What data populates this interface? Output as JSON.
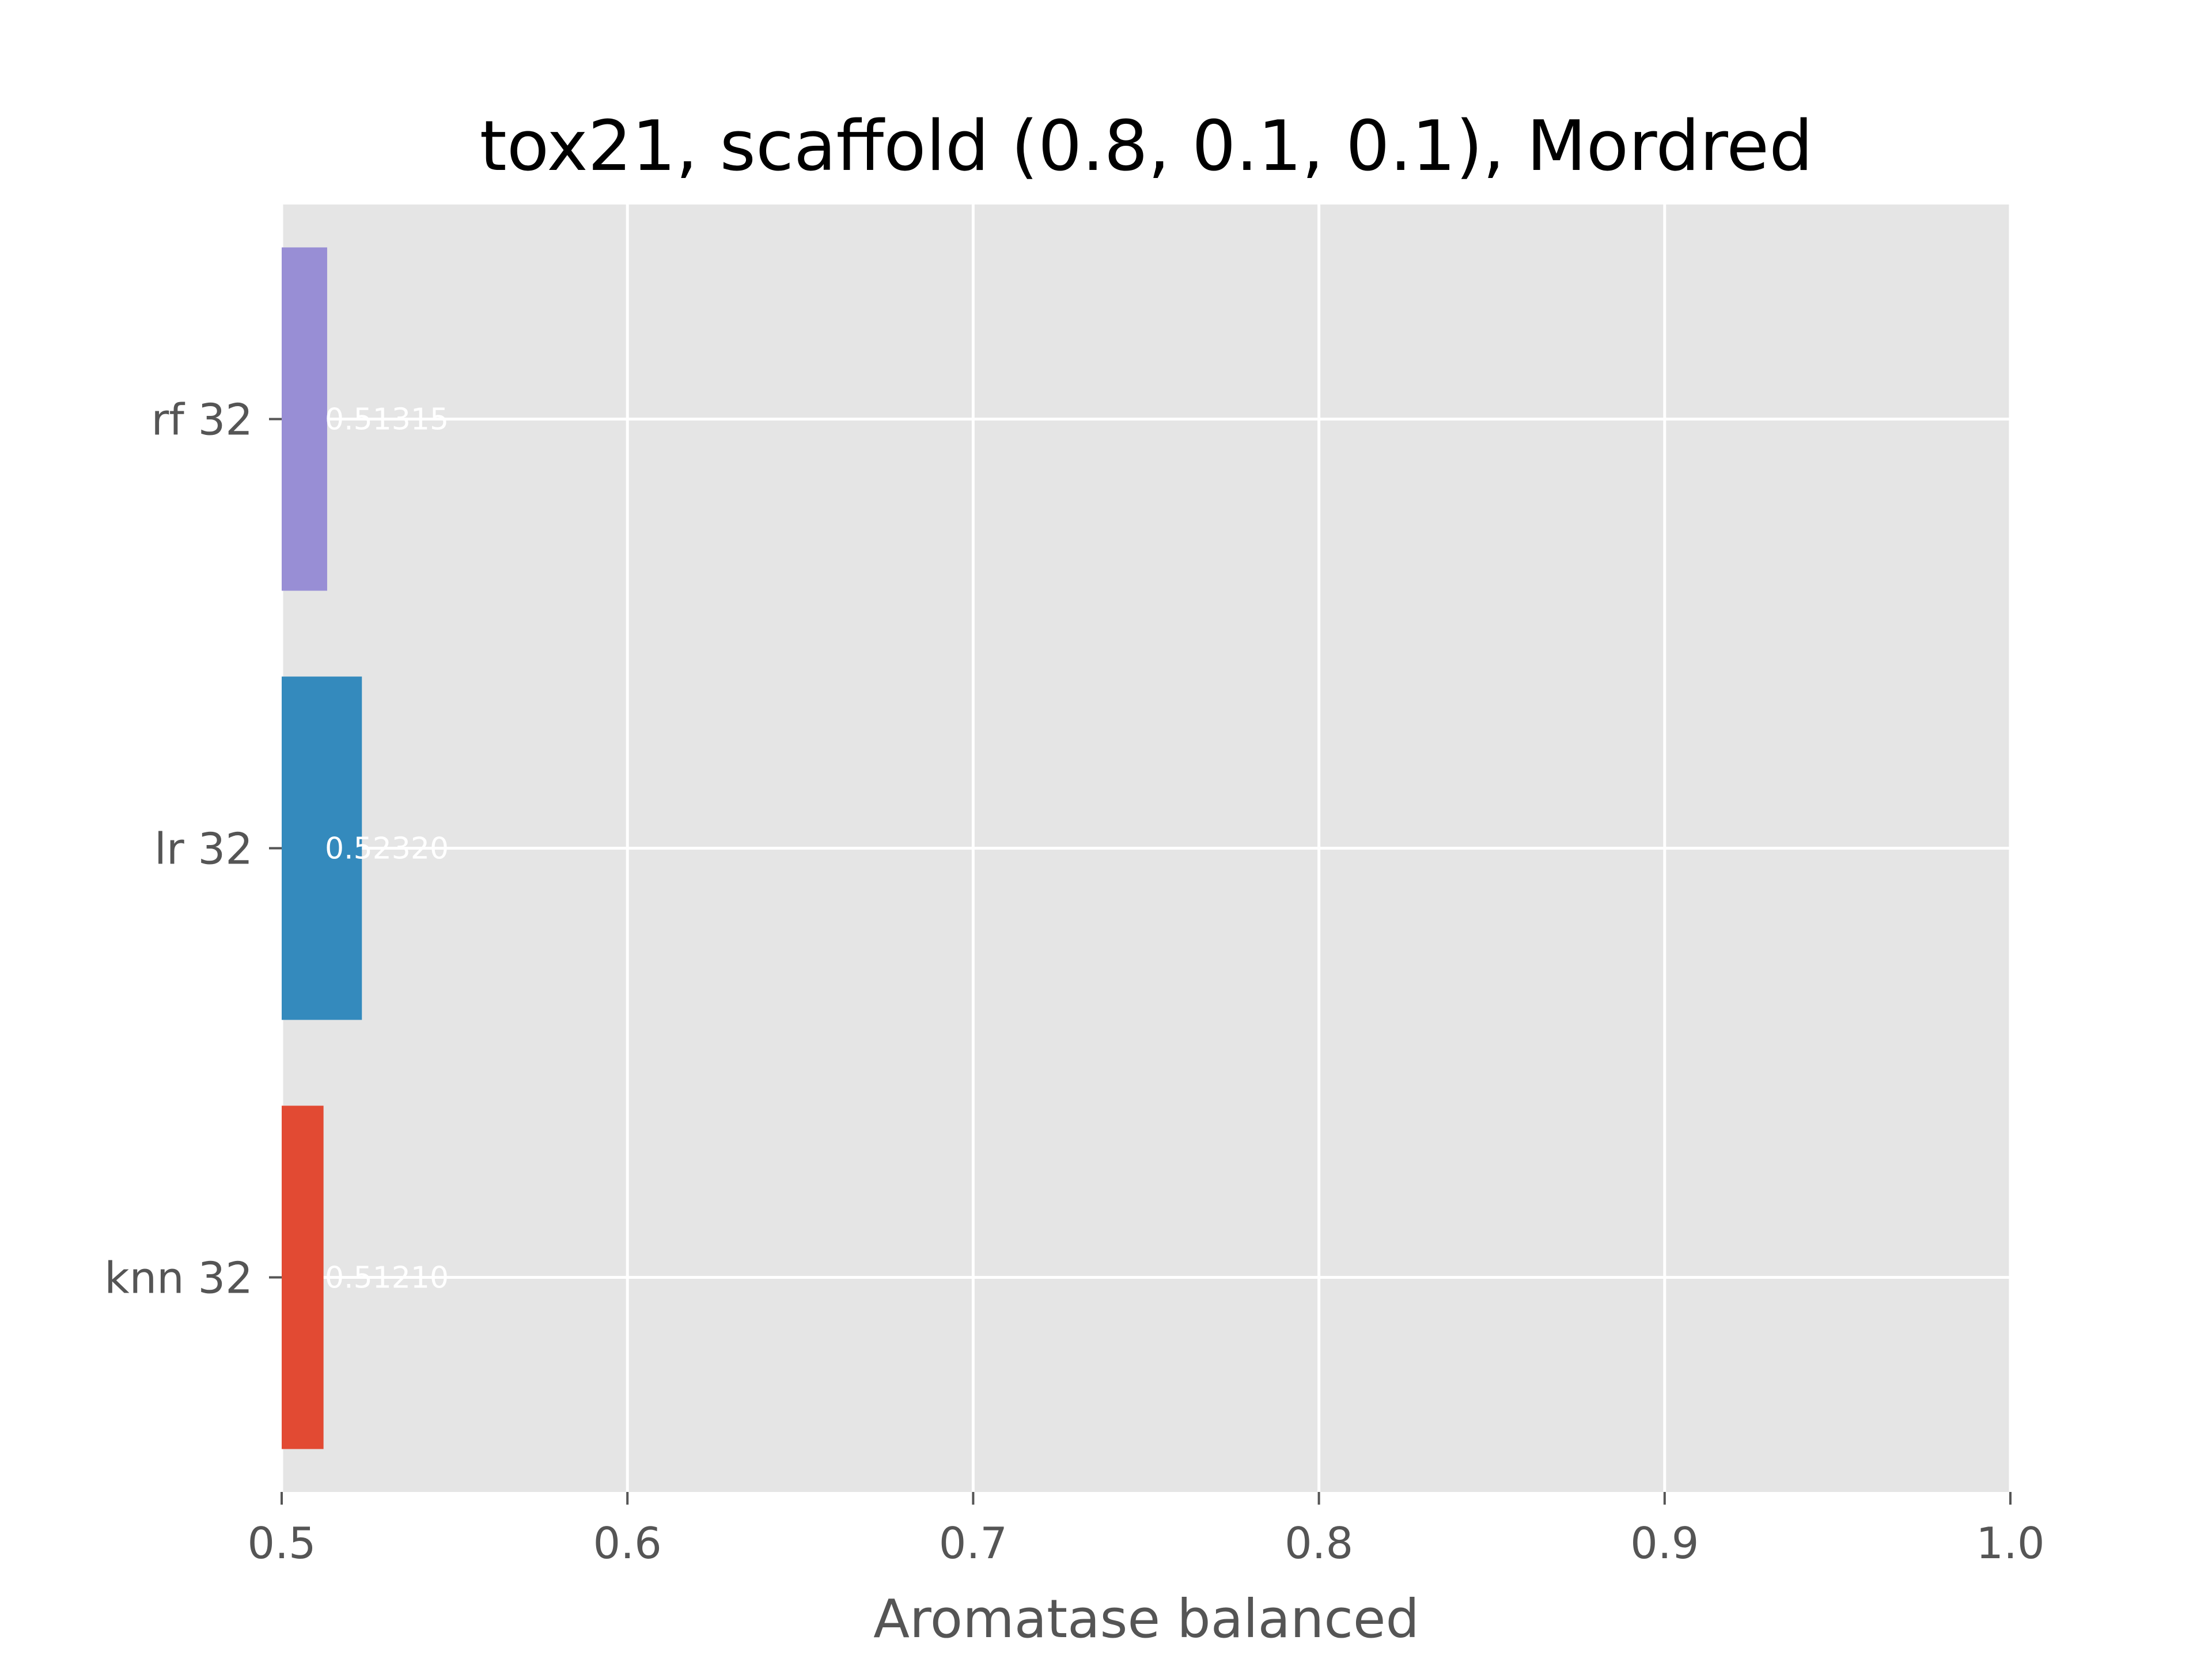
{
  "chart_data": {
    "type": "bar",
    "orientation": "horizontal",
    "title": "tox21, scaffold (0.8, 0.1, 0.1), Mordred",
    "xlabel": "Aromatase balanced",
    "ylabel": "",
    "xlim": [
      0.5,
      1.0
    ],
    "xticks": [
      "0.5",
      "0.6",
      "0.7",
      "0.8",
      "0.9",
      "1.0"
    ],
    "grid": true,
    "legend": "none",
    "categories": [
      "knn 32",
      "lr 32",
      "rf 32"
    ],
    "values": [
      0.5121,
      0.5232,
      0.51315
    ],
    "value_labels": [
      "0.51210",
      "0.52320",
      "0.51315"
    ],
    "colors": [
      "#e24a33",
      "#348abd",
      "#988ed5"
    ],
    "background": "#e5e5e5"
  }
}
